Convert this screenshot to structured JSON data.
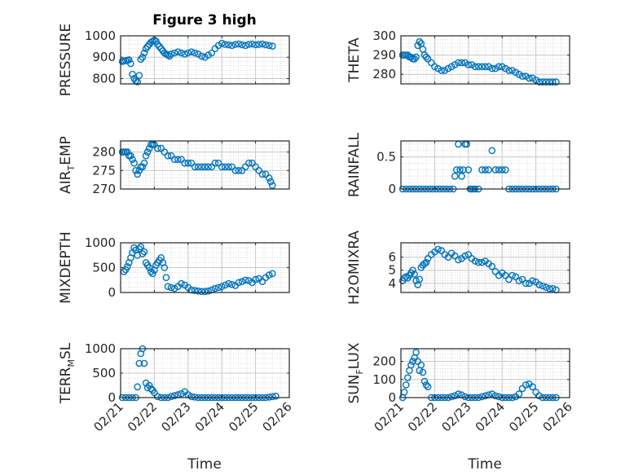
{
  "figure": {
    "title": "Figure 3 high",
    "series_color": "#0072BD"
  },
  "chart_data": [
    {
      "type": "scatter",
      "title": "Figure 3 high",
      "ylabel": "PRESSURE",
      "ylim": [
        775,
        1000
      ],
      "yticks": [
        800,
        900,
        1000
      ],
      "xlim": [
        0,
        5
      ],
      "x": [
        0.05,
        0.1,
        0.15,
        0.2,
        0.25,
        0.3,
        0.35,
        0.4,
        0.45,
        0.5,
        0.55,
        0.6,
        0.65,
        0.7,
        0.75,
        0.8,
        0.85,
        0.9,
        0.95,
        1.0,
        1.05,
        1.1,
        1.15,
        1.2,
        1.25,
        1.3,
        1.35,
        1.4,
        1.45,
        1.5,
        1.6,
        1.7,
        1.8,
        1.9,
        2.0,
        2.1,
        2.2,
        2.3,
        2.4,
        2.5,
        2.6,
        2.7,
        2.8,
        2.9,
        3.0,
        3.1,
        3.2,
        3.3,
        3.4,
        3.5,
        3.6,
        3.7,
        3.8,
        3.9,
        4.0,
        4.1,
        4.2,
        4.3,
        4.4,
        4.5
      ],
      "y": [
        880,
        882,
        884,
        886,
        888,
        870,
        820,
        800,
        790,
        785,
        815,
        890,
        900,
        920,
        940,
        950,
        960,
        970,
        975,
        980,
        975,
        960,
        950,
        940,
        930,
        920,
        915,
        910,
        905,
        915,
        920,
        925,
        920,
        915,
        920,
        925,
        920,
        915,
        905,
        900,
        910,
        920,
        940,
        955,
        965,
        960,
        958,
        955,
        960,
        962,
        958,
        955,
        960,
        962,
        958,
        960,
        962,
        958,
        955,
        952
      ],
      "grid": true
    },
    {
      "type": "scatter",
      "ylabel": "THETA",
      "ylim": [
        275,
        300
      ],
      "yticks": [
        280,
        290,
        300
      ],
      "xlim": [
        0,
        5
      ],
      "x": [
        0.05,
        0.1,
        0.15,
        0.2,
        0.25,
        0.3,
        0.35,
        0.4,
        0.45,
        0.5,
        0.55,
        0.6,
        0.65,
        0.7,
        0.75,
        0.8,
        0.9,
        1.0,
        1.1,
        1.2,
        1.3,
        1.4,
        1.5,
        1.6,
        1.7,
        1.8,
        1.9,
        2.0,
        2.1,
        2.2,
        2.3,
        2.4,
        2.5,
        2.6,
        2.7,
        2.8,
        2.9,
        3.0,
        3.1,
        3.2,
        3.3,
        3.4,
        3.5,
        3.6,
        3.7,
        3.8,
        3.9,
        4.0,
        4.1,
        4.2,
        4.3,
        4.4,
        4.5,
        4.6
      ],
      "y": [
        290,
        290,
        290,
        290,
        289,
        289,
        288,
        288,
        289,
        295,
        297,
        296,
        293,
        290,
        289,
        288,
        286,
        284,
        283,
        282,
        282,
        283,
        284,
        285,
        286,
        286,
        286,
        285,
        285,
        284,
        284,
        284,
        284,
        284,
        283,
        283,
        284,
        284,
        283,
        282,
        282,
        281,
        280,
        279,
        279,
        278,
        278,
        277,
        276,
        276,
        276,
        276,
        276,
        276
      ],
      "grid": true
    },
    {
      "type": "scatter",
      "ylabel": "AIR_TEMP",
      "ylim": [
        270,
        283
      ],
      "yticks": [
        270,
        275,
        280
      ],
      "xlim": [
        0,
        5
      ],
      "x": [
        0.05,
        0.1,
        0.15,
        0.2,
        0.25,
        0.3,
        0.35,
        0.4,
        0.45,
        0.5,
        0.55,
        0.6,
        0.65,
        0.7,
        0.75,
        0.8,
        0.85,
        0.9,
        0.95,
        1.0,
        1.1,
        1.2,
        1.3,
        1.4,
        1.5,
        1.6,
        1.7,
        1.8,
        1.9,
        2.0,
        2.1,
        2.2,
        2.3,
        2.4,
        2.5,
        2.6,
        2.7,
        2.8,
        2.9,
        3.0,
        3.1,
        3.2,
        3.3,
        3.4,
        3.5,
        3.6,
        3.7,
        3.8,
        3.9,
        4.0,
        4.1,
        4.2,
        4.3,
        4.4,
        4.45,
        4.5
      ],
      "y": [
        280,
        280,
        280,
        280,
        279,
        279,
        278,
        277,
        275,
        274,
        275,
        276,
        276,
        277,
        279,
        280,
        281,
        282,
        282,
        282,
        281,
        281,
        280,
        279,
        279,
        278,
        278,
        278,
        277,
        277,
        277,
        276,
        276,
        276,
        276,
        276,
        276,
        277,
        277,
        276,
        276,
        276,
        276,
        275,
        275,
        275,
        276,
        277,
        277,
        276,
        275,
        274,
        274,
        273,
        272,
        271
      ],
      "grid": true
    },
    {
      "type": "scatter",
      "ylabel": "RAINFALL",
      "ylim": [
        0,
        0.75
      ],
      "yticks": [
        0,
        0.5
      ],
      "xlim": [
        0,
        5
      ],
      "x": [
        0.05,
        0.15,
        0.25,
        0.35,
        0.45,
        0.55,
        0.65,
        0.75,
        0.85,
        0.95,
        1.05,
        1.15,
        1.25,
        1.35,
        1.45,
        1.55,
        1.6,
        1.65,
        1.7,
        1.75,
        1.8,
        1.85,
        1.9,
        1.95,
        2.0,
        2.05,
        2.1,
        2.15,
        2.2,
        2.3,
        2.4,
        2.5,
        2.6,
        2.7,
        2.8,
        2.9,
        3.0,
        3.1,
        3.2,
        3.3,
        3.4,
        3.5,
        3.6,
        3.7,
        3.8,
        3.9,
        4.0,
        4.1,
        4.2,
        4.3,
        4.4,
        4.5,
        4.6
      ],
      "y": [
        0,
        0,
        0,
        0,
        0,
        0,
        0,
        0,
        0,
        0,
        0,
        0,
        0,
        0,
        0,
        0,
        0.2,
        0.3,
        0.7,
        0.3,
        0.2,
        0.3,
        0.7,
        0.7,
        0.3,
        0,
        0,
        0,
        0,
        0,
        0.3,
        0.3,
        0.3,
        0.6,
        0.3,
        0.3,
        0.3,
        0.3,
        0,
        0,
        0,
        0,
        0,
        0,
        0,
        0,
        0,
        0,
        0,
        0,
        0,
        0,
        0
      ],
      "grid": true
    },
    {
      "type": "scatter",
      "ylabel": "MIXDEPTH",
      "ylim": [
        0,
        1000
      ],
      "yticks": [
        0,
        500,
        1000
      ],
      "xlim": [
        0,
        5
      ],
      "x": [
        0.1,
        0.15,
        0.2,
        0.25,
        0.3,
        0.35,
        0.4,
        0.45,
        0.5,
        0.55,
        0.6,
        0.65,
        0.7,
        0.75,
        0.8,
        0.85,
        0.9,
        0.95,
        1.0,
        1.05,
        1.1,
        1.15,
        1.2,
        1.25,
        1.3,
        1.35,
        1.4,
        1.5,
        1.6,
        1.7,
        1.8,
        1.9,
        2.0,
        2.1,
        2.2,
        2.3,
        2.4,
        2.5,
        2.6,
        2.7,
        2.8,
        2.9,
        3.0,
        3.1,
        3.2,
        3.3,
        3.4,
        3.5,
        3.6,
        3.7,
        3.8,
        3.9,
        4.0,
        4.1,
        4.2,
        4.3,
        4.4,
        4.5
      ],
      "y": [
        420,
        460,
        520,
        600,
        700,
        800,
        900,
        850,
        750,
        880,
        920,
        780,
        820,
        600,
        550,
        500,
        420,
        380,
        450,
        550,
        600,
        650,
        700,
        600,
        500,
        300,
        120,
        100,
        80,
        120,
        180,
        150,
        100,
        50,
        40,
        30,
        20,
        20,
        30,
        50,
        80,
        100,
        120,
        150,
        180,
        160,
        140,
        200,
        220,
        250,
        240,
        200,
        260,
        280,
        220,
        300,
        350,
        380
      ],
      "grid": true
    },
    {
      "type": "scatter",
      "ylabel": "H2OMIXRA",
      "ylim": [
        3.3,
        7.1
      ],
      "yticks": [
        4,
        5,
        6
      ],
      "xlim": [
        0,
        5
      ],
      "x": [
        0.05,
        0.1,
        0.15,
        0.2,
        0.25,
        0.3,
        0.35,
        0.4,
        0.45,
        0.5,
        0.55,
        0.6,
        0.65,
        0.7,
        0.75,
        0.8,
        0.9,
        1.0,
        1.1,
        1.2,
        1.3,
        1.4,
        1.5,
        1.6,
        1.7,
        1.8,
        1.9,
        2.0,
        2.1,
        2.2,
        2.3,
        2.4,
        2.5,
        2.6,
        2.7,
        2.8,
        2.9,
        3.0,
        3.1,
        3.2,
        3.3,
        3.4,
        3.5,
        3.6,
        3.7,
        3.8,
        3.9,
        4.0,
        4.1,
        4.2,
        4.3,
        4.4,
        4.5,
        4.6
      ],
      "y": [
        4.2,
        4.4,
        4.5,
        4.4,
        4.6,
        4.8,
        5.0,
        4.7,
        4.2,
        3.9,
        4.3,
        5.2,
        5.4,
        5.5,
        5.6,
        5.9,
        6.2,
        6.4,
        6.6,
        6.5,
        6.2,
        6.0,
        6.3,
        6.1,
        5.8,
        5.9,
        6.1,
        6.2,
        5.9,
        5.7,
        5.6,
        5.6,
        5.7,
        5.5,
        5.3,
        4.9,
        4.6,
        4.8,
        4.6,
        4.3,
        4.6,
        4.5,
        4.2,
        4.3,
        4.0,
        4.0,
        4.2,
        4.1,
        3.9,
        3.8,
        3.7,
        3.6,
        3.6,
        3.5
      ],
      "grid": true
    },
    {
      "type": "scatter",
      "ylabel": "TERR_MSL",
      "ylim": [
        0,
        1000
      ],
      "yticks": [
        0,
        500,
        1000
      ],
      "xlim": [
        0,
        5
      ],
      "x": [
        0.05,
        0.15,
        0.25,
        0.35,
        0.45,
        0.5,
        0.55,
        0.6,
        0.65,
        0.7,
        0.75,
        0.8,
        0.85,
        0.9,
        0.95,
        1.0,
        1.1,
        1.2,
        1.3,
        1.4,
        1.5,
        1.6,
        1.7,
        1.8,
        1.9,
        2.0,
        2.1,
        2.2,
        2.3,
        2.4,
        2.5,
        2.6,
        2.7,
        2.8,
        2.9,
        3.0,
        3.1,
        3.2,
        3.3,
        3.4,
        3.5,
        3.6,
        3.7,
        3.8,
        3.9,
        4.0,
        4.1,
        4.2,
        4.3,
        4.4,
        4.5,
        4.6
      ],
      "y": [
        0,
        0,
        0,
        0,
        0,
        220,
        700,
        900,
        1000,
        700,
        300,
        200,
        250,
        180,
        150,
        100,
        20,
        0,
        0,
        0,
        20,
        40,
        60,
        80,
        120,
        60,
        20,
        10,
        0,
        0,
        0,
        0,
        0,
        0,
        0,
        0,
        0,
        0,
        0,
        0,
        0,
        0,
        0,
        0,
        0,
        0,
        0,
        0,
        0,
        10,
        20,
        30
      ],
      "grid": true
    },
    {
      "type": "scatter",
      "ylabel": "SUN_FLUX",
      "ylim": [
        0,
        270
      ],
      "yticks": [
        0,
        100,
        200
      ],
      "xlim": [
        0,
        5
      ],
      "x": [
        0.05,
        0.1,
        0.15,
        0.2,
        0.25,
        0.3,
        0.35,
        0.4,
        0.45,
        0.5,
        0.55,
        0.6,
        0.65,
        0.7,
        0.75,
        0.8,
        0.9,
        1.0,
        1.1,
        1.2,
        1.3,
        1.4,
        1.5,
        1.6,
        1.7,
        1.8,
        1.9,
        2.0,
        2.1,
        2.2,
        2.3,
        2.4,
        2.5,
        2.6,
        2.7,
        2.8,
        2.9,
        3.0,
        3.1,
        3.2,
        3.3,
        3.4,
        3.5,
        3.6,
        3.7,
        3.8,
        3.9,
        4.0,
        4.1,
        4.2,
        4.3,
        4.4,
        4.5,
        4.6
      ],
      "y": [
        0,
        30,
        70,
        110,
        150,
        180,
        200,
        220,
        250,
        200,
        150,
        180,
        140,
        90,
        70,
        60,
        0,
        0,
        0,
        0,
        0,
        0,
        5,
        10,
        20,
        15,
        5,
        0,
        0,
        0,
        0,
        5,
        10,
        15,
        20,
        10,
        5,
        0,
        0,
        0,
        0,
        5,
        20,
        50,
        70,
        75,
        60,
        30,
        10,
        0,
        0,
        0,
        0,
        0
      ],
      "grid": true
    }
  ],
  "xaxis": {
    "label": "Time",
    "ticks": [
      "02/21",
      "02/22",
      "02/23",
      "02/24",
      "02/25",
      "02/26"
    ]
  }
}
